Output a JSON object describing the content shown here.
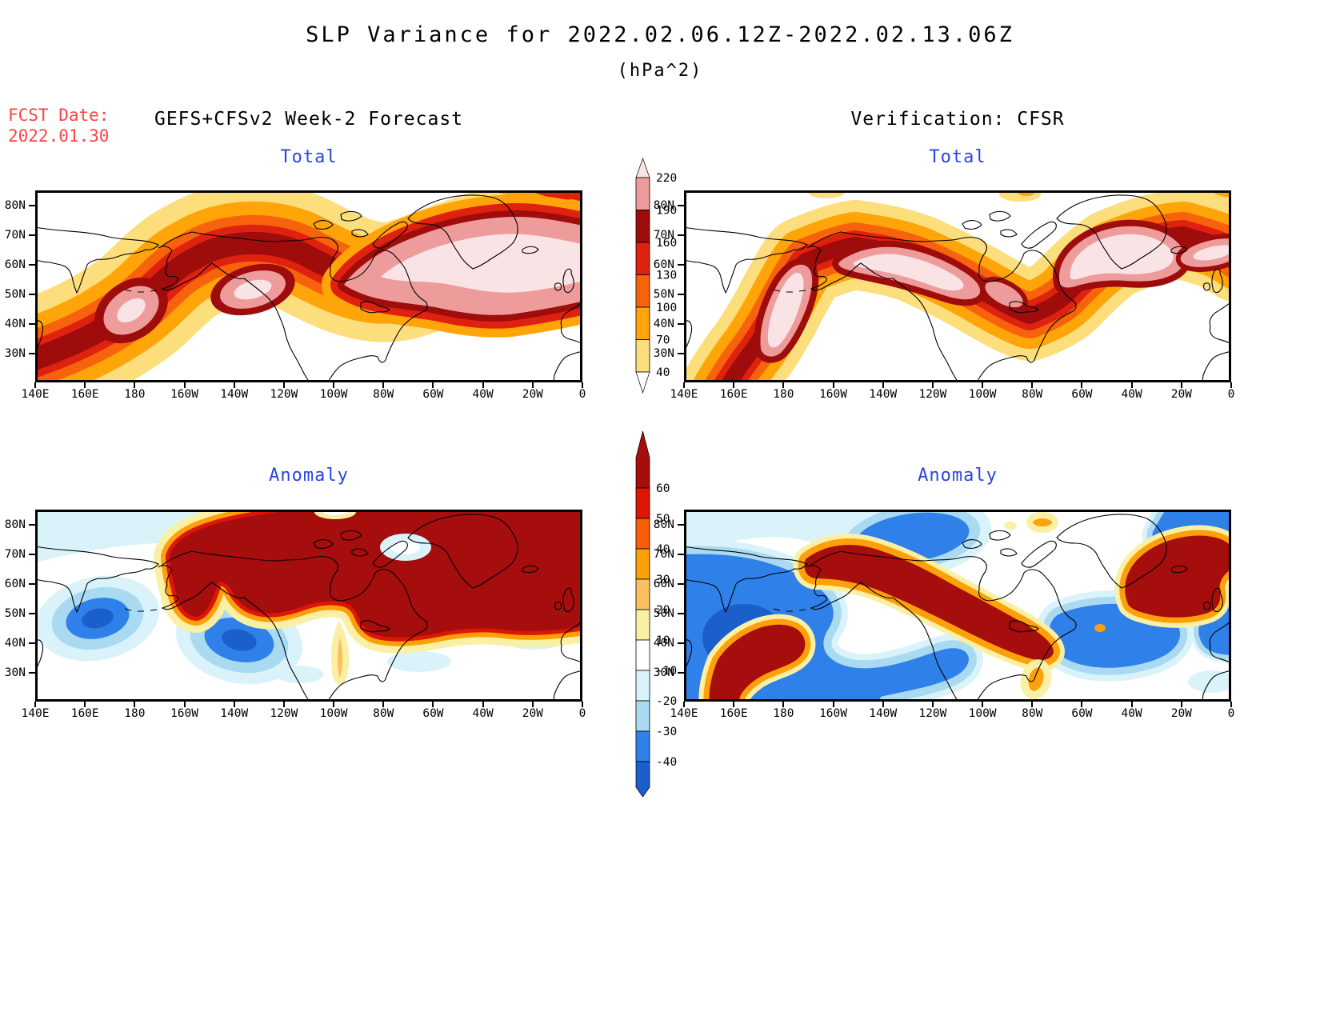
{
  "title": {
    "line1": "SLP Variance for 2022.02.06.12Z-2022.02.13.06Z",
    "line2": "(hPa^2)"
  },
  "forecast_info": {
    "label": "FCST Date:",
    "date": "2022.01.30",
    "color": "#FA4444"
  },
  "columns": {
    "left_header": "GEFS+CFSv2 Week-2 Forecast",
    "right_header": "Verification: CFSR"
  },
  "panels": [
    {
      "id": "forecast-total",
      "label": "Total"
    },
    {
      "id": "verification-total",
      "label": "Total"
    },
    {
      "id": "forecast-anomaly",
      "label": "Anomaly"
    },
    {
      "id": "verification-anomaly",
      "label": "Anomaly"
    }
  ],
  "axes": {
    "lat": [
      "80N",
      "70N",
      "60N",
      "50N",
      "40N",
      "30N"
    ],
    "lon": [
      "140E",
      "160E",
      "180",
      "160W",
      "140W",
      "120W",
      "100W",
      "80W",
      "60W",
      "40W",
      "20W",
      "0"
    ]
  },
  "colorbars": {
    "total": {
      "levels": [
        "220",
        "190",
        "160",
        "130",
        "100",
        "70",
        "40"
      ],
      "segment_colors_top_to_bottom": [
        "#FAE3E5",
        "#EE9B9B",
        "#9E0C0C",
        "#DF220F",
        "#F7630C",
        "#FFA409",
        "#FCDE7D"
      ],
      "below_min_color": "#FFFFFF"
    },
    "anomaly": {
      "levels": [
        "60",
        "50",
        "40",
        "30",
        "20",
        "10",
        "-10",
        "-20",
        "-30",
        "-40"
      ],
      "segment_colors_top_to_bottom": [
        "#A60D0D",
        "#DE1605",
        "#F85D08",
        "#FEA00A",
        "#FAC05F",
        "#FAF0A5",
        "#FFFFFF",
        "#DAF3FA",
        "#A9DAF1",
        "#2F80E9",
        "#1A5FCC"
      ]
    }
  },
  "styles": {
    "panel_label_color": "#2845E2",
    "fcst_color": "#FA4444"
  },
  "chart_data": [
    {
      "type": "heatmap",
      "panel": "Forecast Total",
      "source": "GEFS+CFSv2 Week-2 Forecast",
      "units": "hPa^2",
      "lon_ticks": [
        "140E",
        "160E",
        "180",
        "160W",
        "140W",
        "120W",
        "100W",
        "80W",
        "60W",
        "40W",
        "20W",
        "0"
      ],
      "lat_ticks": [
        "80N",
        "70N",
        "60N",
        "50N",
        "40N",
        "30N"
      ],
      "contour_levels": [
        40,
        70,
        100,
        130,
        160,
        190,
        220
      ],
      "maxima": [
        {
          "location": "North Pacific near 48N 178E",
          "value": ">220"
        },
        {
          "location": "Northwest Canada ~55-62N 130W",
          "value": ">220"
        },
        {
          "location": "North Atlantic / Greenland 50-75N 60W-0",
          "value": ">220"
        }
      ],
      "minima": [
        {
          "location": "subtropics and lower-left/bottom-center edges",
          "value": "<40"
        }
      ]
    },
    {
      "type": "heatmap",
      "panel": "Verification Total",
      "source": "CFSR",
      "units": "hPa^2",
      "contour_levels": [
        40,
        70,
        100,
        130,
        160,
        190,
        220
      ],
      "maxima": [
        {
          "location": "Diagonal band 30N 170E up to Bering Strait",
          "value": ">220"
        },
        {
          "location": "Band Alaska to Great Lakes ~55-65N",
          "value": ">220"
        },
        {
          "location": "Davis Strait / North Atlantic to 0",
          "value": ">220"
        }
      ],
      "minima": [
        {
          "location": "central US and top-left sector",
          "value": "<40"
        }
      ]
    },
    {
      "type": "heatmap",
      "panel": "Forecast Anomaly",
      "units": "hPa^2",
      "contour_levels": [
        -40,
        -30,
        -20,
        -10,
        10,
        20,
        30,
        40,
        50,
        60
      ],
      "maxima": [
        {
          "location": "Large positive region Canada-Greenland-NE Atlantic 55-85N",
          "value": ">60"
        },
        {
          "location": "Alaska lobe ~55-70N 150W",
          "value": ">60"
        }
      ],
      "minima": [
        {
          "location": "West Pacific ~45N 160E",
          "value": "<-40"
        },
        {
          "location": "Northeast Pacific ~42N 145W",
          "value": "<-40"
        }
      ]
    },
    {
      "type": "heatmap",
      "panel": "Verification Anomaly",
      "units": "hPa^2",
      "contour_levels": [
        -40,
        -30,
        -20,
        -10,
        10,
        20,
        30,
        40,
        50,
        60
      ],
      "maxima": [
        {
          "location": "Band Bering Strait to Great Lakes",
          "value": ">60"
        },
        {
          "location": "Kamchatka curl 30-50N 155-180E",
          "value": ">60"
        },
        {
          "location": "Greenland Sea / NE Atlantic",
          "value": ">60"
        }
      ],
      "minima": [
        {
          "location": "West/Central North Pacific",
          "value": "<-40"
        },
        {
          "location": "Arctic ~78N 160W",
          "value": "<-30"
        },
        {
          "location": "Eastern Canada / W Atlantic",
          "value": "<-40"
        }
      ]
    }
  ]
}
